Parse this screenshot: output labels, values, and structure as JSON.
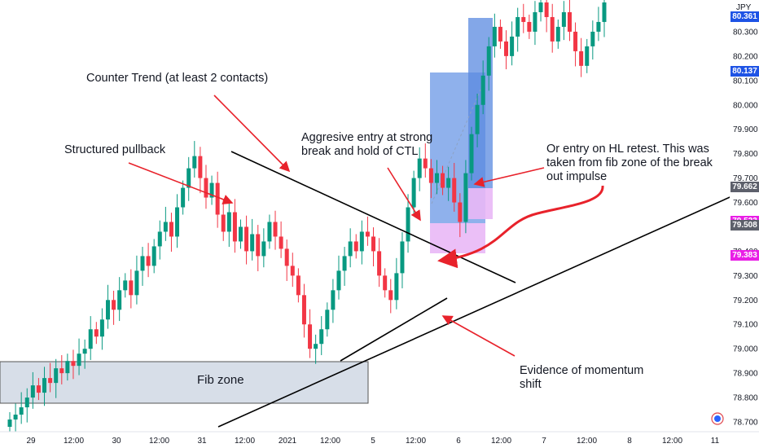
{
  "chart_data": {
    "type": "candlestick",
    "symbol_label": "JPY",
    "y_axis": {
      "ticks": [
        "80.361",
        "80.300",
        "80.200",
        "80.137",
        "80.100",
        "80.000",
        "79.900",
        "79.800",
        "79.700",
        "79.662",
        "79.600",
        "79.523",
        "79.508",
        "79.400",
        "79.383",
        "79.300",
        "79.200",
        "79.100",
        "79.000",
        "78.900",
        "78.800",
        "78.700"
      ],
      "range": [
        78.66,
        80.43
      ]
    },
    "x_axis": {
      "ticks": [
        "29",
        "12:00",
        "30",
        "12:00",
        "31",
        "12:00",
        "2021",
        "12:00",
        "5",
        "12:00",
        "6",
        "12:00",
        "7",
        "12:00",
        "8",
        "12:00",
        "11"
      ]
    },
    "price_tags": [
      {
        "value": "80.361",
        "color": "#1e53e5"
      },
      {
        "value": "80.137",
        "color": "#1e53e5"
      },
      {
        "value": "79.662",
        "color": "#5d606b"
      },
      {
        "value": "79.523",
        "color": "#e91ee6"
      },
      {
        "value": "79.508",
        "color": "#5d606b"
      },
      {
        "value": "79.383",
        "color": "#e91ee6"
      }
    ],
    "series_close": [
      78.71,
      78.73,
      78.76,
      78.8,
      78.85,
      78.82,
      78.88,
      78.86,
      78.92,
      78.9,
      78.95,
      78.93,
      78.98,
      79.0,
      79.08,
      79.05,
      79.12,
      79.2,
      79.16,
      79.24,
      79.28,
      79.22,
      79.32,
      79.38,
      79.34,
      79.42,
      79.48,
      79.52,
      79.46,
      79.58,
      79.66,
      79.74,
      79.79,
      79.7,
      79.62,
      79.68,
      79.55,
      79.48,
      79.56,
      79.44,
      79.5,
      79.4,
      79.47,
      79.38,
      79.44,
      79.52,
      79.46,
      79.41,
      79.34,
      79.3,
      79.22,
      79.1,
      79.0,
      79.02,
      79.08,
      79.16,
      79.24,
      79.32,
      79.38,
      79.44,
      79.4,
      79.48,
      79.46,
      79.4,
      79.3,
      79.24,
      79.2,
      79.31,
      79.44,
      79.58,
      79.7,
      79.78,
      79.74,
      79.68,
      79.72,
      79.66,
      79.7,
      79.6,
      79.52,
      79.72,
      79.88,
      80.0,
      80.12,
      80.24,
      80.32,
      80.26,
      80.2,
      80.28,
      80.36,
      80.34,
      80.3,
      80.38,
      80.42,
      80.36,
      80.26,
      80.32,
      80.38,
      80.3,
      80.22,
      80.16,
      80.24,
      80.3,
      80.34,
      80.42
    ]
  },
  "annotations": {
    "counter_trend": "Counter Trend (at least 2 contacts)",
    "structured_pullback": "Structured pullback",
    "aggressive_entry_l1": "Aggresive entry at strong",
    "aggressive_entry_l2": "break and hold of CTL",
    "hl_retest_l1": "Or entry on HL retest. This was",
    "hl_retest_l2": "taken from fib zone of the break",
    "hl_retest_l3": "out impulse",
    "momentum_l1": "Evidence of momentum",
    "momentum_l2": "shift",
    "fib_zone": "Fib zone"
  },
  "colors": {
    "up": "#089981",
    "down": "#f23645",
    "arrow": "#e8222b",
    "trendline": "#000000",
    "fib_zone_fill": "#d7dee8",
    "position_blue": "#6a97e6",
    "position_pink": "#e9b8f6"
  }
}
